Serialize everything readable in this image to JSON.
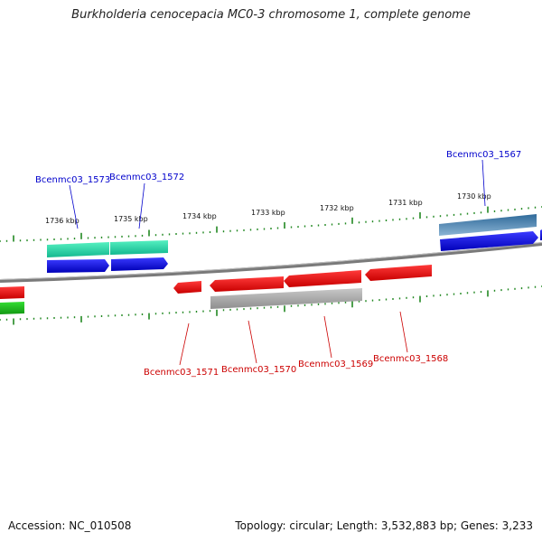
{
  "title": "Burkholderia cenocepacia MC0-3 chromosome 1, complete genome",
  "footer": {
    "accession": "Accession: NC_010508",
    "topology": "Topology: circular; Length: 3,532,883 bp; Genes: 3,233"
  },
  "ticks": [
    {
      "label": "1736 kbp"
    },
    {
      "label": "1735 kbp"
    },
    {
      "label": "1734 kbp"
    },
    {
      "label": "1733 kbp"
    },
    {
      "label": "1732 kbp"
    },
    {
      "label": "1731 kbp"
    },
    {
      "label": "1730 kbp"
    }
  ],
  "gene_labels": {
    "top": [
      "Bcenmc03_1573",
      "Bcenmc03_1572",
      "Bcenmc03_1567"
    ],
    "bottom": [
      "Bcenmc03_1571",
      "Bcenmc03_1570",
      "Bcenmc03_1569",
      "Bcenmc03_1568"
    ]
  },
  "colors": {
    "forward_gene": "#0000dd",
    "reverse_gene": "#ee0000",
    "rna_gene": "#22ddaa",
    "pseudo_blue": "#4a7fae",
    "grey_feature": "#aaaaaa",
    "backbone": "#888888",
    "tick": "#228822",
    "label_blue": "#0000cc",
    "label_red": "#cc0000"
  }
}
